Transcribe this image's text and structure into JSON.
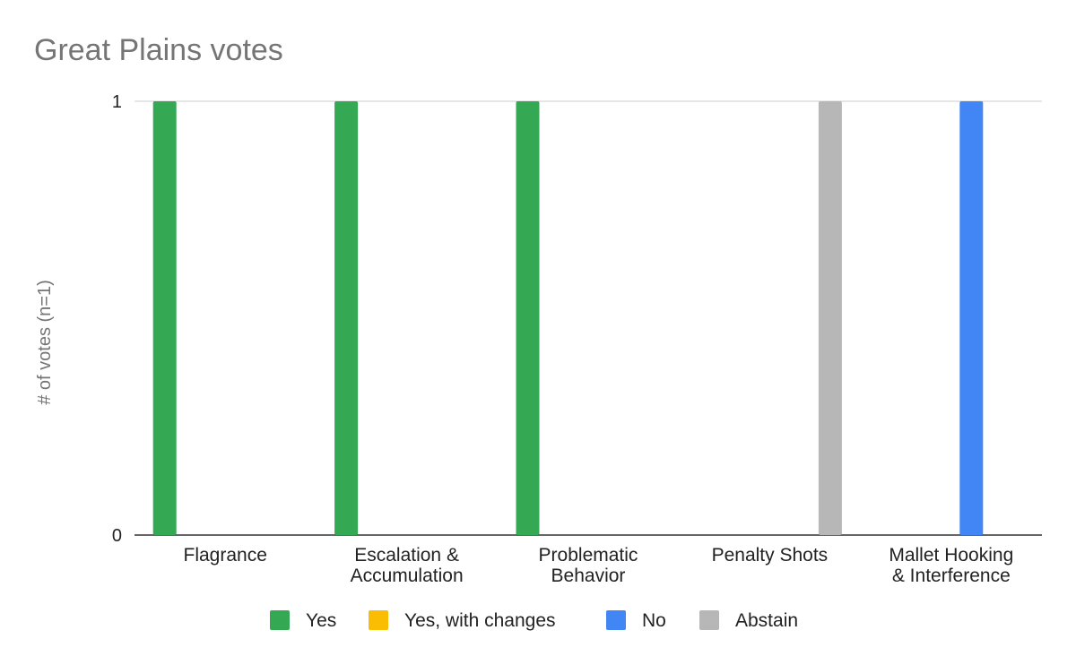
{
  "chart_data": {
    "type": "bar",
    "title": "Great Plains votes",
    "xlabel": "",
    "ylabel": "# of votes (n=1)",
    "ylim": [
      0,
      1
    ],
    "yticks": [
      0,
      1
    ],
    "grid": true,
    "legend": "bottom",
    "categories": [
      [
        "Flagrance"
      ],
      [
        "Escalation &",
        "Accumulation"
      ],
      [
        "Problematic",
        "Behavior"
      ],
      [
        "Penalty Shots"
      ],
      [
        "Mallet Hooking",
        "& Interference"
      ]
    ],
    "series": [
      {
        "name": "Yes",
        "color": "#34a853",
        "values": [
          1,
          1,
          1,
          0,
          0
        ]
      },
      {
        "name": "Yes, with changes",
        "color": "#fbbc04",
        "values": [
          0,
          0,
          0,
          0,
          0
        ]
      },
      {
        "name": "No",
        "color": "#4285f4",
        "values": [
          0,
          0,
          0,
          0,
          1
        ]
      },
      {
        "name": "Abstain",
        "color": "#b7b7b7",
        "values": [
          0,
          0,
          0,
          1,
          0
        ]
      }
    ]
  }
}
